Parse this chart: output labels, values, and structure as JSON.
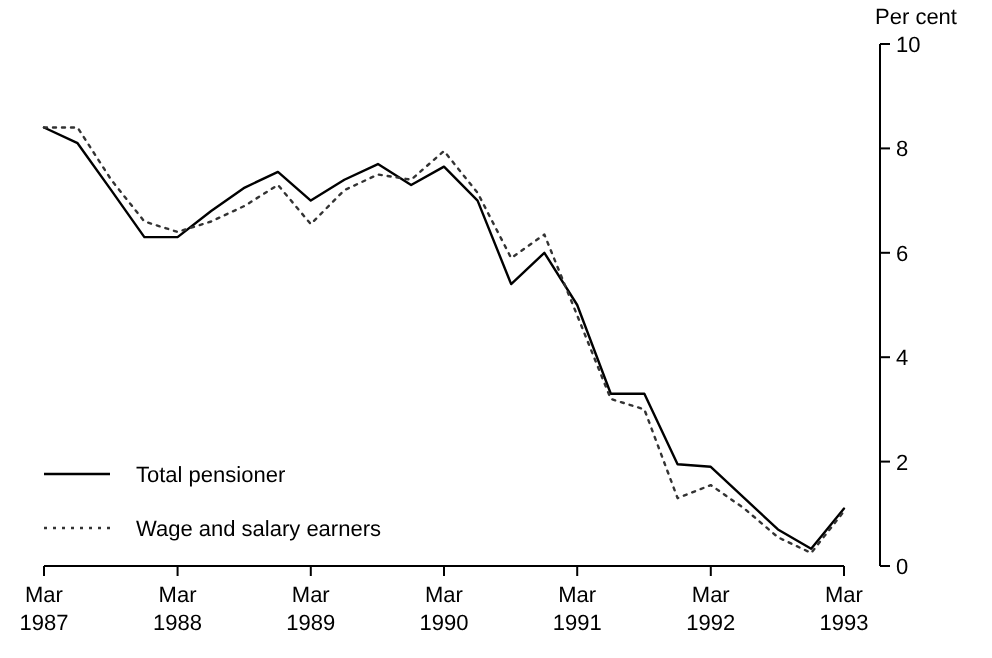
{
  "chart_data": {
    "type": "line",
    "ylabel": "Per cent",
    "x": [
      "1987-03",
      "1987-06",
      "1987-09",
      "1987-12",
      "1988-03",
      "1988-06",
      "1988-09",
      "1988-12",
      "1989-03",
      "1989-06",
      "1989-09",
      "1989-12",
      "1990-03",
      "1990-06",
      "1990-09",
      "1990-12",
      "1991-03",
      "1991-06",
      "1991-09",
      "1991-12",
      "1992-03",
      "1992-06",
      "1992-09",
      "1992-12",
      "1993-03"
    ],
    "series": [
      {
        "name": "Total pensioner",
        "color": "#000000",
        "line_style": "solid",
        "values": [
          8.4,
          8.1,
          7.2,
          6.3,
          6.3,
          6.8,
          7.25,
          7.55,
          7.0,
          7.4,
          7.7,
          7.3,
          7.65,
          7.0,
          5.4,
          6.0,
          5.0,
          3.3,
          3.3,
          1.95,
          1.9,
          1.3,
          0.7,
          0.33,
          1.1
        ]
      },
      {
        "name": "Wage and salary earners",
        "color": "#333333",
        "line_style": "dotted",
        "values": [
          8.4,
          8.4,
          7.4,
          6.6,
          6.4,
          6.6,
          6.9,
          7.3,
          6.55,
          7.2,
          7.5,
          7.4,
          7.95,
          7.15,
          5.9,
          6.35,
          4.8,
          3.2,
          3.0,
          1.3,
          1.55,
          1.1,
          0.55,
          0.25,
          1.05
        ]
      }
    ],
    "xlim": [
      "1987-03",
      "1993-03"
    ],
    "xticks": [
      {
        "value": "1987-03",
        "label": "Mar 1987"
      },
      {
        "value": "1988-03",
        "label": "Mar 1988"
      },
      {
        "value": "1989-03",
        "label": "Mar 1989"
      },
      {
        "value": "1990-03",
        "label": "Mar 1990"
      },
      {
        "value": "1991-03",
        "label": "Mar 1991"
      },
      {
        "value": "1992-03",
        "label": "Mar 1992"
      },
      {
        "value": "1993-03",
        "label": "Mar 1993"
      }
    ],
    "ylim": [
      0,
      10
    ],
    "yticks": [
      0,
      2,
      4,
      6,
      8,
      10
    ],
    "grid": false,
    "legend": "bottom left",
    "marker": "none"
  }
}
